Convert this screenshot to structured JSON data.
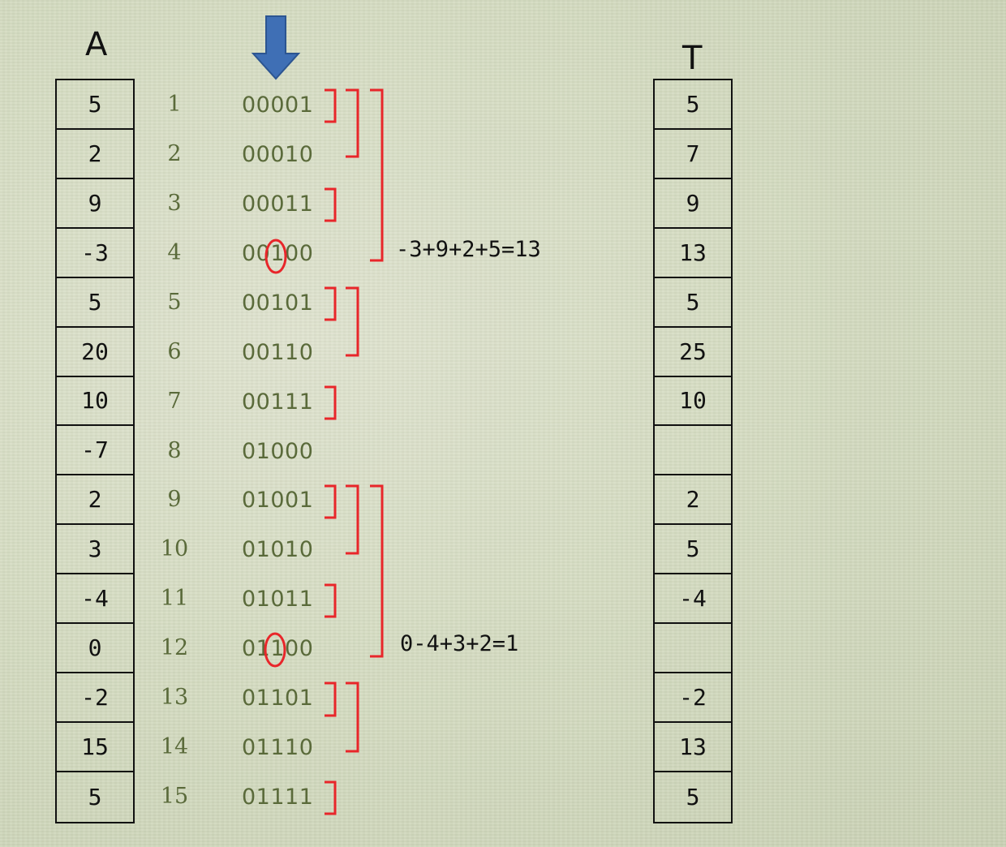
{
  "array_a": {
    "title": "A",
    "values": [
      "5",
      "2",
      "9",
      "-3",
      "5",
      "20",
      "10",
      "-7",
      "2",
      "3",
      "-4",
      "0",
      "-2",
      "15",
      "5"
    ]
  },
  "indices": [
    "1",
    "2",
    "3",
    "4",
    "5",
    "6",
    "7",
    "8",
    "9",
    "10",
    "11",
    "12",
    "13",
    "14",
    "15"
  ],
  "binary": [
    "00001",
    "00010",
    "00011",
    "00100",
    "00101",
    "00110",
    "00111",
    "01000",
    "01001",
    "01010",
    "01011",
    "01100",
    "01101",
    "01110",
    "01111"
  ],
  "array_t": {
    "title": "T",
    "values": [
      "5",
      "7",
      "9",
      "13",
      "5",
      "25",
      "10",
      "",
      "2",
      "5",
      "-4",
      "",
      "-2",
      "13",
      "5"
    ]
  },
  "annotations": {
    "sum_1": "-3+9+2+5=13",
    "sum_2": "0-4+3+2=1"
  },
  "colors": {
    "bracket": "#e8262a",
    "arrow": "#3f6fb5",
    "index_text": "#5a6a3a"
  },
  "icons": {
    "pointer": "arrow-down-icon"
  }
}
